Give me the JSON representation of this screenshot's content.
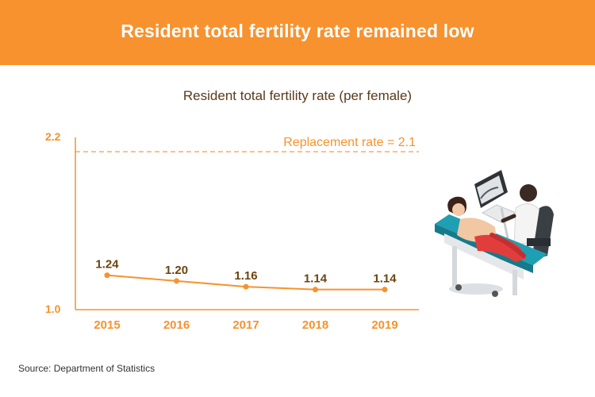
{
  "banner": {
    "title": "Resident total fertility rate remained low"
  },
  "source": "Source: Department of Statistics",
  "colors": {
    "accent": "#f7922e",
    "label_brown": "#6b4410",
    "line": "#f7922e",
    "title_brown": "#5a3a1a"
  },
  "chart_data": {
    "type": "line",
    "title": "Resident total fertility rate (per female)",
    "categories": [
      "2015",
      "2016",
      "2017",
      "2018",
      "2019"
    ],
    "values": [
      1.24,
      1.2,
      1.16,
      1.14,
      1.14
    ],
    "data_labels": [
      "1.24",
      "1.20",
      "1.16",
      "1.14",
      "1.14"
    ],
    "ylim": [
      1.0,
      2.2
    ],
    "y_ticks": [
      "1.0",
      "2.2"
    ],
    "reference_line": {
      "value": 2.1,
      "label": "Replacement rate = 2.1"
    },
    "grid": false,
    "legend": "none"
  },
  "illustration": {
    "icon": "ultrasound-exam-illustration"
  }
}
